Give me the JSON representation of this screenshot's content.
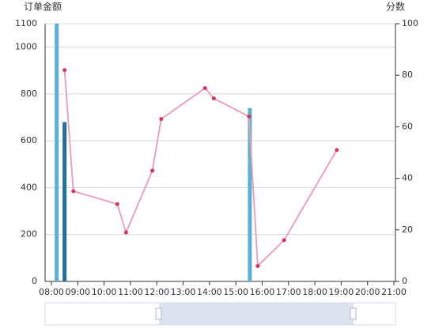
{
  "chart_data": {
    "type": "combo",
    "y_title": "订单金额",
    "y2_title": "分数",
    "xlim": [
      "08:00",
      "21:00"
    ],
    "xticks": [
      "08:00",
      "09:00",
      "10:00",
      "11:00",
      "12:00",
      "13:00",
      "14:00",
      "15:00",
      "16:00",
      "17:00",
      "18:00",
      "19:00",
      "20:00",
      "21:00"
    ],
    "ylim": [
      0,
      1100
    ],
    "yticks": [
      0,
      200,
      400,
      600,
      800,
      1000,
      1100
    ],
    "y2lim": [
      0,
      100
    ],
    "y2ticks": [
      0,
      20,
      40,
      60,
      80,
      100
    ],
    "grid": true,
    "series": [
      {
        "type": "bar",
        "color": "#5ab1d4",
        "x": [
          "08:12",
          "15:32"
        ],
        "values": [
          1100,
          740
        ]
      },
      {
        "type": "bar",
        "color": "#1f6f99",
        "x": [
          "08:30"
        ],
        "values": [
          680
        ]
      },
      {
        "type": "line",
        "axis": "y2",
        "color": "#ec9bb0",
        "marker_color": "#d6365c",
        "x": [
          "08:30",
          "08:50",
          "10:30",
          "10:50",
          "11:50",
          "12:10",
          "13:50",
          "14:10",
          "15:30",
          "15:50",
          "16:50",
          "18:50"
        ],
        "values": [
          82,
          35,
          30,
          19,
          43,
          63,
          75,
          71,
          64,
          6,
          16,
          51
        ]
      }
    ]
  }
}
